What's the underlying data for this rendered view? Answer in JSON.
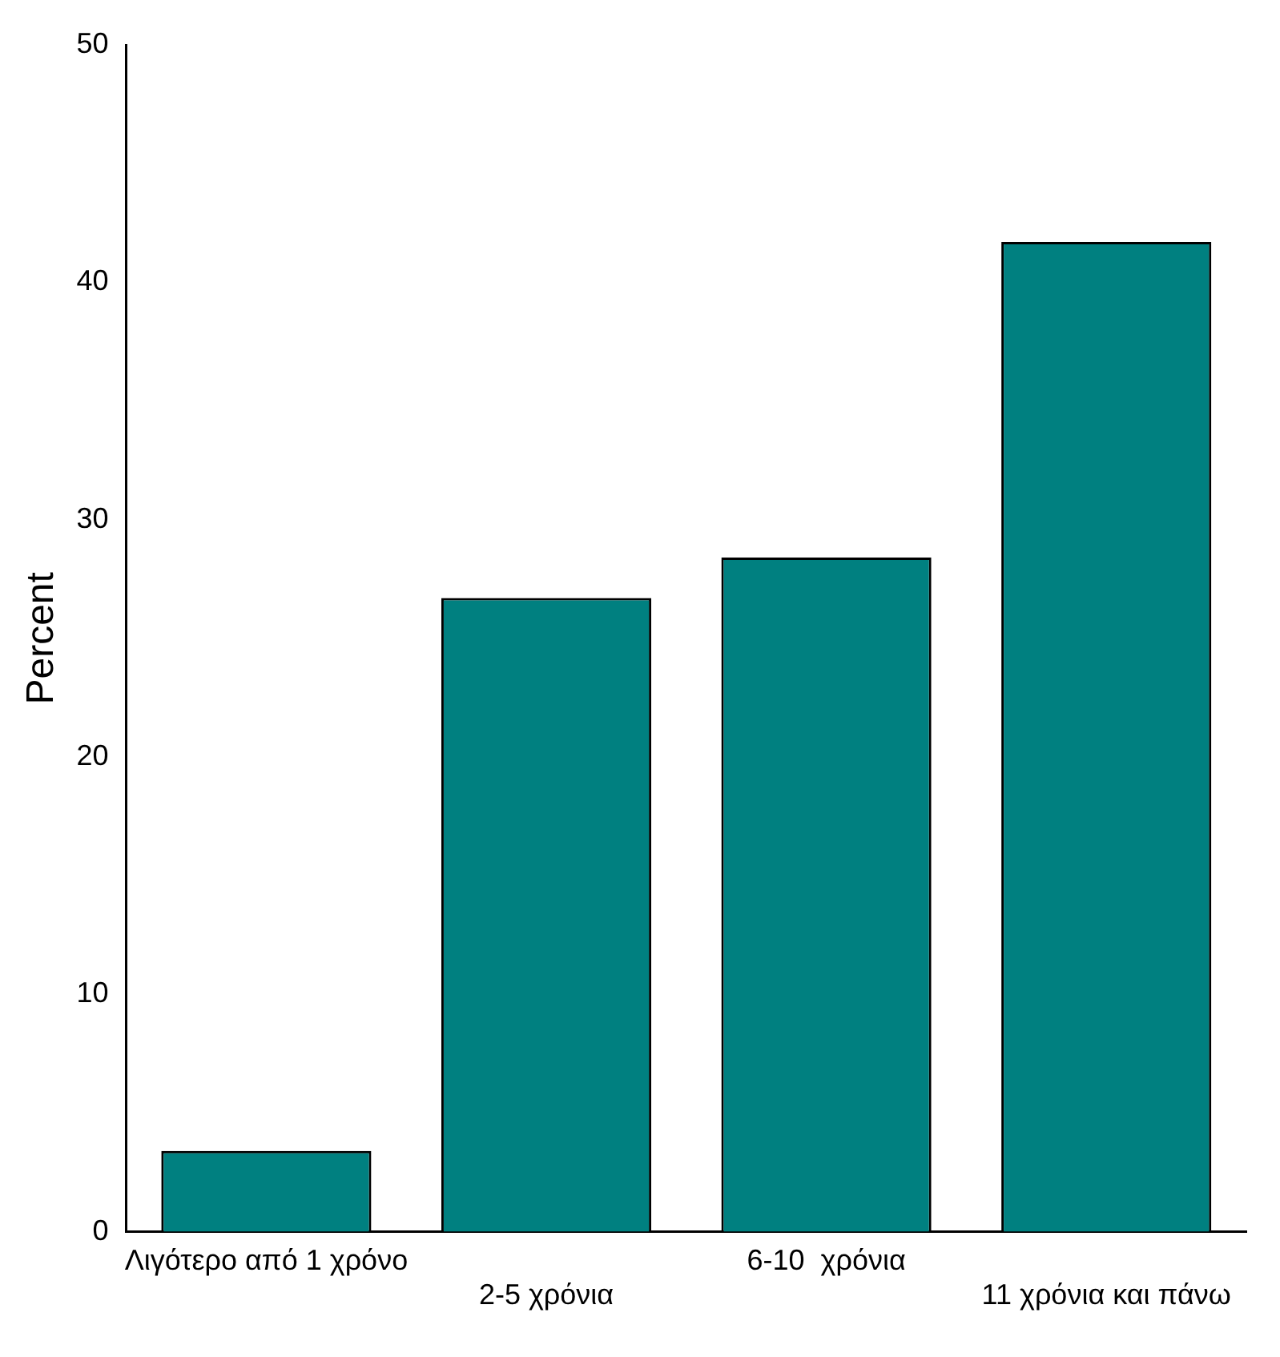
{
  "chart_data": {
    "type": "bar",
    "ylabel": "Percent",
    "categories": [
      "Λιγότερο από 1 χρόνο",
      "2-5 χρόνια",
      "6-10  χρόνια",
      "11 χρόνια και πάνω"
    ],
    "values": [
      3.4,
      26.7,
      28.4,
      41.7
    ],
    "color": "#008080",
    "ylim": [
      0,
      50
    ],
    "yticks": [
      0,
      10,
      20,
      30,
      40,
      50
    ],
    "grid": false,
    "legend": false
  }
}
